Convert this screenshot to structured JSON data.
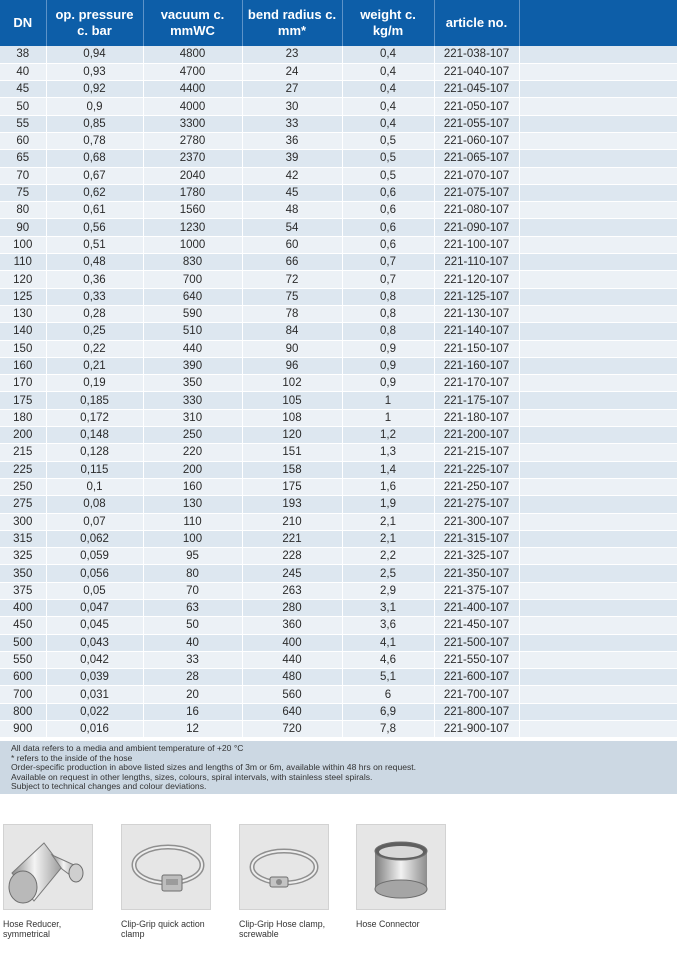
{
  "table": {
    "headers": [
      {
        "line1": "DN",
        "line2": ""
      },
      {
        "line1": "op. pressure",
        "line2": "c. bar"
      },
      {
        "line1": "vacuum c.",
        "line2": "mmWC"
      },
      {
        "line1": "bend radius c.",
        "line2": "mm*"
      },
      {
        "line1": "weight c.",
        "line2": "kg/m"
      },
      {
        "line1": "article no.",
        "line2": ""
      },
      {
        "line1": "",
        "line2": ""
      }
    ],
    "rows": [
      [
        "38",
        "0,94",
        "4800",
        "23",
        "0,4",
        "221-038-107"
      ],
      [
        "40",
        "0,93",
        "4700",
        "24",
        "0,4",
        "221-040-107"
      ],
      [
        "45",
        "0,92",
        "4400",
        "27",
        "0,4",
        "221-045-107"
      ],
      [
        "50",
        "0,9",
        "4000",
        "30",
        "0,4",
        "221-050-107"
      ],
      [
        "55",
        "0,85",
        "3300",
        "33",
        "0,4",
        "221-055-107"
      ],
      [
        "60",
        "0,78",
        "2780",
        "36",
        "0,5",
        "221-060-107"
      ],
      [
        "65",
        "0,68",
        "2370",
        "39",
        "0,5",
        "221-065-107"
      ],
      [
        "70",
        "0,67",
        "2040",
        "42",
        "0,5",
        "221-070-107"
      ],
      [
        "75",
        "0,62",
        "1780",
        "45",
        "0,6",
        "221-075-107"
      ],
      [
        "80",
        "0,61",
        "1560",
        "48",
        "0,6",
        "221-080-107"
      ],
      [
        "90",
        "0,56",
        "1230",
        "54",
        "0,6",
        "221-090-107"
      ],
      [
        "100",
        "0,51",
        "1000",
        "60",
        "0,6",
        "221-100-107"
      ],
      [
        "110",
        "0,48",
        "830",
        "66",
        "0,7",
        "221-110-107"
      ],
      [
        "120",
        "0,36",
        "700",
        "72",
        "0,7",
        "221-120-107"
      ],
      [
        "125",
        "0,33",
        "640",
        "75",
        "0,8",
        "221-125-107"
      ],
      [
        "130",
        "0,28",
        "590",
        "78",
        "0,8",
        "221-130-107"
      ],
      [
        "140",
        "0,25",
        "510",
        "84",
        "0,8",
        "221-140-107"
      ],
      [
        "150",
        "0,22",
        "440",
        "90",
        "0,9",
        "221-150-107"
      ],
      [
        "160",
        "0,21",
        "390",
        "96",
        "0,9",
        "221-160-107"
      ],
      [
        "170",
        "0,19",
        "350",
        "102",
        "0,9",
        "221-170-107"
      ],
      [
        "175",
        "0,185",
        "330",
        "105",
        "1",
        "221-175-107"
      ],
      [
        "180",
        "0,172",
        "310",
        "108",
        "1",
        "221-180-107"
      ],
      [
        "200",
        "0,148",
        "250",
        "120",
        "1,2",
        "221-200-107"
      ],
      [
        "215",
        "0,128",
        "220",
        "151",
        "1,3",
        "221-215-107"
      ],
      [
        "225",
        "0,115",
        "200",
        "158",
        "1,4",
        "221-225-107"
      ],
      [
        "250",
        "0,1",
        "160",
        "175",
        "1,6",
        "221-250-107"
      ],
      [
        "275",
        "0,08",
        "130",
        "193",
        "1,9",
        "221-275-107"
      ],
      [
        "300",
        "0,07",
        "110",
        "210",
        "2,1",
        "221-300-107"
      ],
      [
        "315",
        "0,062",
        "100",
        "221",
        "2,1",
        "221-315-107"
      ],
      [
        "325",
        "0,059",
        "95",
        "228",
        "2,2",
        "221-325-107"
      ],
      [
        "350",
        "0,056",
        "80",
        "245",
        "2,5",
        "221-350-107"
      ],
      [
        "375",
        "0,05",
        "70",
        "263",
        "2,9",
        "221-375-107"
      ],
      [
        "400",
        "0,047",
        "63",
        "280",
        "3,1",
        "221-400-107"
      ],
      [
        "450",
        "0,045",
        "50",
        "360",
        "3,6",
        "221-450-107"
      ],
      [
        "500",
        "0,043",
        "40",
        "400",
        "4,1",
        "221-500-107"
      ],
      [
        "550",
        "0,042",
        "33",
        "440",
        "4,6",
        "221-550-107"
      ],
      [
        "600",
        "0,039",
        "28",
        "480",
        "5,1",
        "221-600-107"
      ],
      [
        "700",
        "0,031",
        "20",
        "560",
        "6",
        "221-700-107"
      ],
      [
        "800",
        "0,022",
        "16",
        "640",
        "6,9",
        "221-800-107"
      ],
      [
        "900",
        "0,016",
        "12",
        "720",
        "7,8",
        "221-900-107"
      ]
    ]
  },
  "notes": [
    "All data refers to a media and ambient temperature of +20 °C",
    "* refers to the inside of the hose",
    "Order-specific production in above listed sizes and lengths of 3m or 6m, available within 48 hrs on request.",
    "Available on request in other lengths, sizes, colours, spiral intervals, with stainless steel spirals.",
    "Subject to technical changes and colour deviations."
  ],
  "accessories": [
    {
      "line1": "Hose Reducer,",
      "line2": "symmetrical",
      "icon": "hose-reducer-icon"
    },
    {
      "line1": "Clip-Grip quick action",
      "line2": "clamp",
      "icon": "clip-grip-clamp-icon"
    },
    {
      "line1": "Clip-Grip Hose clamp,",
      "line2": "screwable",
      "icon": "hose-clamp-icon"
    },
    {
      "line1": "Hose Connector",
      "line2": "",
      "icon": "hose-connector-icon"
    }
  ],
  "colors": {
    "header_bg": "#0d5ea8",
    "row_odd": "#dde7f0",
    "row_even": "#ecf1f6",
    "notes_bg": "#ccd8e3"
  }
}
